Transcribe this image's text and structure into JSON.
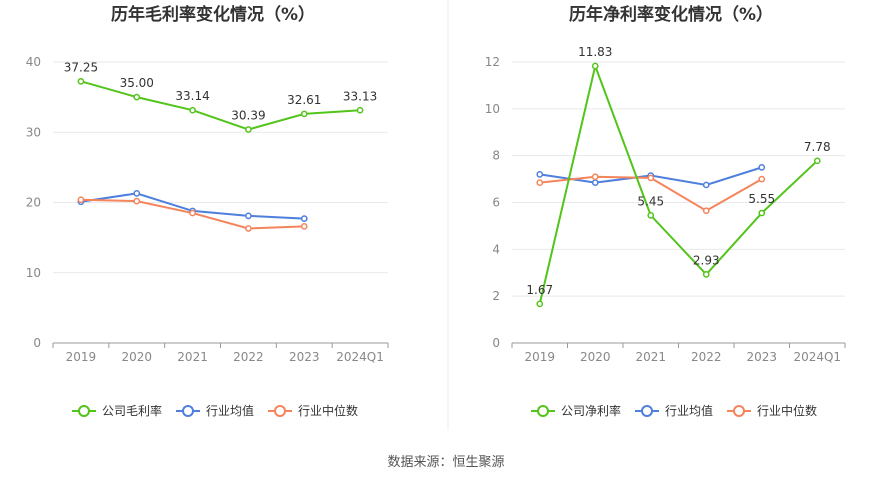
{
  "chart_data": [
    {
      "type": "line",
      "title": "历年毛利率变化情况（%）",
      "categories": [
        "2019",
        "2020",
        "2021",
        "2022",
        "2023",
        "2024Q1"
      ],
      "ylim": [
        0,
        40
      ],
      "yticks": [
        0,
        10,
        20,
        30,
        40
      ],
      "grid": true,
      "legend": "bottom",
      "series": [
        {
          "name": "公司毛利率",
          "color": "#52c41a",
          "labels": true,
          "values": [
            37.25,
            35.0,
            33.14,
            30.39,
            32.61,
            33.13
          ]
        },
        {
          "name": "行业均值",
          "color": "#4e7fdd",
          "labels": false,
          "values": [
            20.1,
            21.3,
            18.8,
            18.1,
            17.7,
            null
          ]
        },
        {
          "name": "行业中位数",
          "color": "#f5845b",
          "labels": false,
          "values": [
            20.4,
            20.2,
            18.5,
            16.3,
            16.6,
            null
          ]
        }
      ],
      "value_labels": [
        "37.25",
        "35.00",
        "33.14",
        "30.39",
        "32.61",
        "33.13"
      ]
    },
    {
      "type": "line",
      "title": "历年净利率变化情况（%）",
      "categories": [
        "2019",
        "2020",
        "2021",
        "2022",
        "2023",
        "2024Q1"
      ],
      "ylim": [
        0,
        12
      ],
      "yticks": [
        0,
        2,
        4,
        6,
        8,
        10,
        12
      ],
      "grid": true,
      "legend": "bottom",
      "series": [
        {
          "name": "公司净利率",
          "color": "#52c41a",
          "labels": true,
          "values": [
            1.67,
            11.83,
            5.45,
            2.93,
            5.55,
            7.78
          ]
        },
        {
          "name": "行业均值",
          "color": "#4e7fdd",
          "labels": false,
          "values": [
            7.2,
            6.85,
            7.15,
            6.75,
            7.5,
            null
          ]
        },
        {
          "name": "行业中位数",
          "color": "#f5845b",
          "labels": false,
          "values": [
            6.85,
            7.1,
            7.05,
            5.65,
            7.0,
            null
          ]
        }
      ],
      "value_labels": [
        "1.67",
        "11.83",
        "5.45",
        "2.93",
        "5.55",
        "7.78"
      ]
    }
  ],
  "source_text": "数据来源：恒生聚源"
}
